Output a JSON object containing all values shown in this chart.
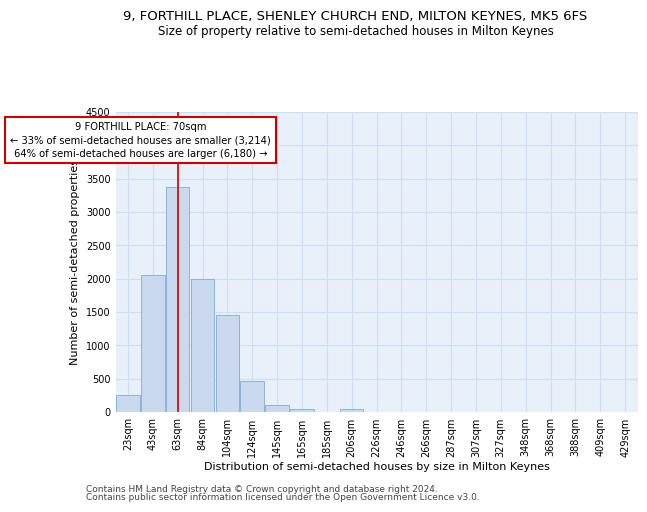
{
  "title": "9, FORTHILL PLACE, SHENLEY CHURCH END, MILTON KEYNES, MK5 6FS",
  "subtitle": "Size of property relative to semi-detached houses in Milton Keynes",
  "xlabel": "Distribution of semi-detached houses by size in Milton Keynes",
  "ylabel": "Number of semi-detached properties",
  "footnote1": "Contains HM Land Registry data © Crown copyright and database right 2024.",
  "footnote2": "Contains public sector information licensed under the Open Government Licence v3.0.",
  "bar_labels": [
    "23sqm",
    "43sqm",
    "63sqm",
    "84sqm",
    "104sqm",
    "124sqm",
    "145sqm",
    "165sqm",
    "185sqm",
    "206sqm",
    "226sqm",
    "246sqm",
    "266sqm",
    "287sqm",
    "307sqm",
    "327sqm",
    "348sqm",
    "368sqm",
    "388sqm",
    "409sqm",
    "429sqm"
  ],
  "bar_values": [
    250,
    2050,
    3370,
    2000,
    1450,
    470,
    100,
    50,
    0,
    50,
    0,
    0,
    0,
    0,
    0,
    0,
    0,
    0,
    0,
    0,
    0
  ],
  "bar_color": "#cad9ed",
  "bar_edge_color": "#8ab4d8",
  "grid_color": "#d0dff0",
  "background_color": "#e8f0fa",
  "property_size": "70sqm",
  "pct_smaller": 33,
  "num_smaller": "3,214",
  "pct_larger": 64,
  "num_larger": "6,180",
  "annotation_box_color": "#cc0000",
  "ylim": [
    0,
    4500
  ],
  "yticks": [
    0,
    500,
    1000,
    1500,
    2000,
    2500,
    3000,
    3500,
    4000,
    4500
  ],
  "title_fontsize": 9.5,
  "subtitle_fontsize": 8.5,
  "label_fontsize": 8,
  "tick_fontsize": 7,
  "footnote_fontsize": 6.5
}
